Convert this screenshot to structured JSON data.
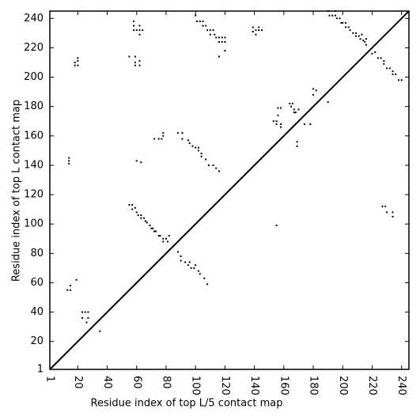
{
  "chart_data": {
    "type": "scatter",
    "xlabel": "Residue index of top L/5 contact map",
    "ylabel": "Residue index of top L contact map",
    "color": "#000000",
    "xlim": [
      1,
      245
    ],
    "ylim": [
      1,
      245
    ],
    "xticks": [
      1,
      20,
      40,
      60,
      80,
      100,
      120,
      140,
      160,
      180,
      200,
      220,
      240
    ],
    "yticks": [
      1,
      20,
      40,
      60,
      80,
      100,
      120,
      140,
      160,
      180,
      200,
      220,
      240
    ],
    "x": [
      18,
      18,
      20,
      20,
      20,
      58,
      58,
      58,
      60,
      62,
      62,
      64,
      62,
      55,
      59,
      59,
      59,
      62,
      62,
      100,
      101,
      103,
      105,
      105,
      107,
      108,
      110,
      110,
      112,
      113,
      114,
      116,
      116,
      118,
      118,
      120,
      120,
      120,
      116,
      139,
      139,
      141,
      141,
      143,
      143,
      145,
      190,
      191,
      193,
      195,
      195,
      196,
      198,
      199,
      200,
      202,
      202,
      204,
      205,
      207,
      209,
      209,
      211,
      212,
      214,
      215,
      216,
      216,
      213,
      220,
      222,
      224,
      226,
      228,
      228,
      230,
      232,
      234,
      236,
      238,
      240,
      234,
      13,
      15,
      15,
      19,
      14,
      14,
      14,
      23,
      25,
      27,
      23,
      27,
      26,
      35,
      55,
      57,
      57,
      59,
      60,
      61,
      63,
      63,
      65,
      66,
      67,
      69,
      70,
      71,
      72,
      73,
      75,
      76,
      78,
      80,
      78,
      81,
      82,
      60,
      63,
      72,
      75,
      77,
      78,
      78,
      88,
      91,
      91,
      95,
      96,
      98,
      100,
      102,
      102,
      104,
      104,
      107,
      109,
      112,
      114,
      116,
      88,
      90,
      90,
      93,
      95,
      96,
      97,
      99,
      100,
      102,
      103,
      106,
      108,
      153,
      155,
      155,
      156,
      156,
      158,
      158,
      158,
      164,
      165,
      166,
      167,
      167,
      168,
      170,
      169,
      169,
      174,
      178,
      180,
      182,
      180,
      190,
      155,
      227,
      229,
      230,
      234,
      234
    ],
    "values": [
      208,
      210,
      208,
      211,
      213,
      238,
      235,
      232,
      232,
      232,
      235,
      232,
      229,
      214,
      214,
      210,
      208,
      211,
      208,
      242,
      238,
      238,
      238,
      235,
      235,
      232,
      232,
      229,
      232,
      229,
      227,
      227,
      224,
      224,
      227,
      227,
      224,
      218,
      214,
      234,
      231,
      229,
      232,
      232,
      234,
      232,
      245,
      242,
      242,
      242,
      245,
      240,
      240,
      237,
      237,
      237,
      234,
      234,
      232,
      230,
      230,
      228,
      228,
      226,
      225,
      224,
      222,
      226,
      229,
      216,
      217,
      213,
      213,
      211,
      209,
      206,
      206,
      202,
      202,
      198,
      198,
      204,
      55,
      55,
      58,
      62,
      141,
      143,
      145,
      40,
      40,
      40,
      36,
      36,
      33,
      27,
      113,
      113,
      110,
      111,
      108,
      106,
      106,
      104,
      104,
      102,
      101,
      99,
      97,
      97,
      95,
      95,
      92,
      92,
      90,
      90,
      88,
      88,
      92,
      143,
      142,
      158,
      158,
      158,
      160,
      162,
      162,
      162,
      158,
      157,
      155,
      153,
      152,
      152,
      150,
      148,
      146,
      144,
      140,
      140,
      138,
      136,
      81,
      78,
      75,
      74,
      72,
      74,
      70,
      70,
      72,
      68,
      66,
      63,
      59,
      170,
      170,
      168,
      174,
      179,
      179,
      168,
      166,
      182,
      180,
      182,
      178,
      176,
      176,
      178,
      153,
      156,
      168,
      168,
      192,
      191,
      188,
      183,
      99,
      112,
      112,
      108,
      108,
      105
    ]
  }
}
